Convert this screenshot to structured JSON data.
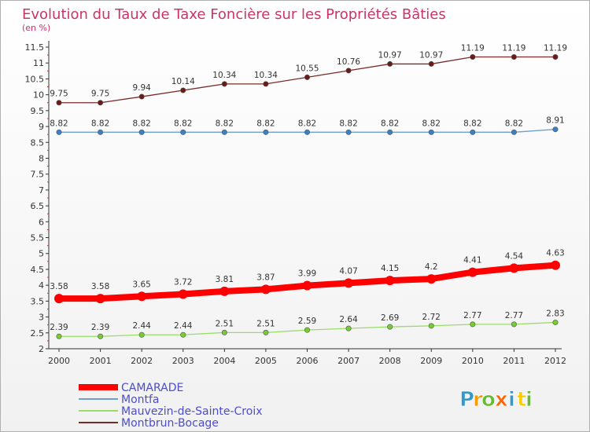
{
  "chart_data": {
    "type": "line",
    "title": "Evolution du Taux de Taxe Foncière sur les Propriétés Bâties",
    "subtitle": "(en %)",
    "categories": [
      "2000",
      "2001",
      "2002",
      "2003",
      "2004",
      "2005",
      "2006",
      "2007",
      "2008",
      "2009",
      "2010",
      "2011",
      "2012"
    ],
    "ylim": [
      2,
      11.5
    ],
    "yticks": [
      "2",
      "2.5",
      "3",
      "3.5",
      "4",
      "4.5",
      "5",
      "5.5",
      "6",
      "6.5",
      "7",
      "7.5",
      "8",
      "8.5",
      "9",
      "9.5",
      "10",
      "10.5",
      "11",
      "11.5"
    ],
    "grid": false,
    "legend_position": "bottom-left",
    "series": [
      {
        "name": "CAMARADE",
        "color": "#ff0000",
        "marker": "#ff0000",
        "width": "thick",
        "values": [
          3.58,
          3.58,
          3.65,
          3.72,
          3.81,
          3.87,
          3.99,
          4.07,
          4.15,
          4.2,
          4.41,
          4.54,
          4.63
        ],
        "labels": [
          "3.58",
          "3.58",
          "3.65",
          "3.72",
          "3.81",
          "3.87",
          "3.99",
          "4.07",
          "4.15",
          "4.2",
          "4.41",
          "4.54",
          "4.63"
        ]
      },
      {
        "name": "Montfa",
        "color": "#6f9fcf",
        "marker": "#3d7fbf",
        "width": "thin",
        "values": [
          8.82,
          8.82,
          8.82,
          8.82,
          8.82,
          8.82,
          8.82,
          8.82,
          8.82,
          8.82,
          8.82,
          8.82,
          8.91
        ],
        "labels": [
          "8.82",
          "8.82",
          "8.82",
          "8.82",
          "8.82",
          "8.82",
          "8.82",
          "8.82",
          "8.82",
          "8.82",
          "8.82",
          "8.82",
          "8.91"
        ]
      },
      {
        "name": "Mauvezin-de-Sainte-Croix",
        "color": "#99dd66",
        "marker": "#77cc33",
        "width": "thin",
        "values": [
          2.39,
          2.39,
          2.44,
          2.44,
          2.51,
          2.51,
          2.59,
          2.64,
          2.69,
          2.72,
          2.77,
          2.77,
          2.83
        ],
        "labels": [
          "2.39",
          "2.39",
          "2.44",
          "2.44",
          "2.51",
          "2.51",
          "2.59",
          "2.64",
          "2.69",
          "2.72",
          "2.77",
          "2.77",
          "2.83"
        ]
      },
      {
        "name": "Montbrun-Bocage",
        "color": "#7a2a2a",
        "marker": "#6b1a1a",
        "width": "thin",
        "values": [
          9.75,
          9.75,
          9.94,
          10.14,
          10.34,
          10.34,
          10.55,
          10.76,
          10.97,
          10.97,
          11.19,
          11.19,
          11.19
        ],
        "labels": [
          "9.75",
          "9.75",
          "9.94",
          "10.14",
          "10.34",
          "10.34",
          "10.55",
          "10.76",
          "10.97",
          "10.97",
          "11.19",
          "11.19",
          "11.19"
        ]
      }
    ]
  },
  "logo": {
    "letters": [
      "P",
      "r",
      "o",
      "x",
      "i",
      "t",
      "i"
    ],
    "colors": [
      "#3399cc",
      "#ff9900",
      "#66bb33",
      "#ff6600",
      "#3399cc",
      "#ffcc00",
      "#66bb33"
    ]
  }
}
